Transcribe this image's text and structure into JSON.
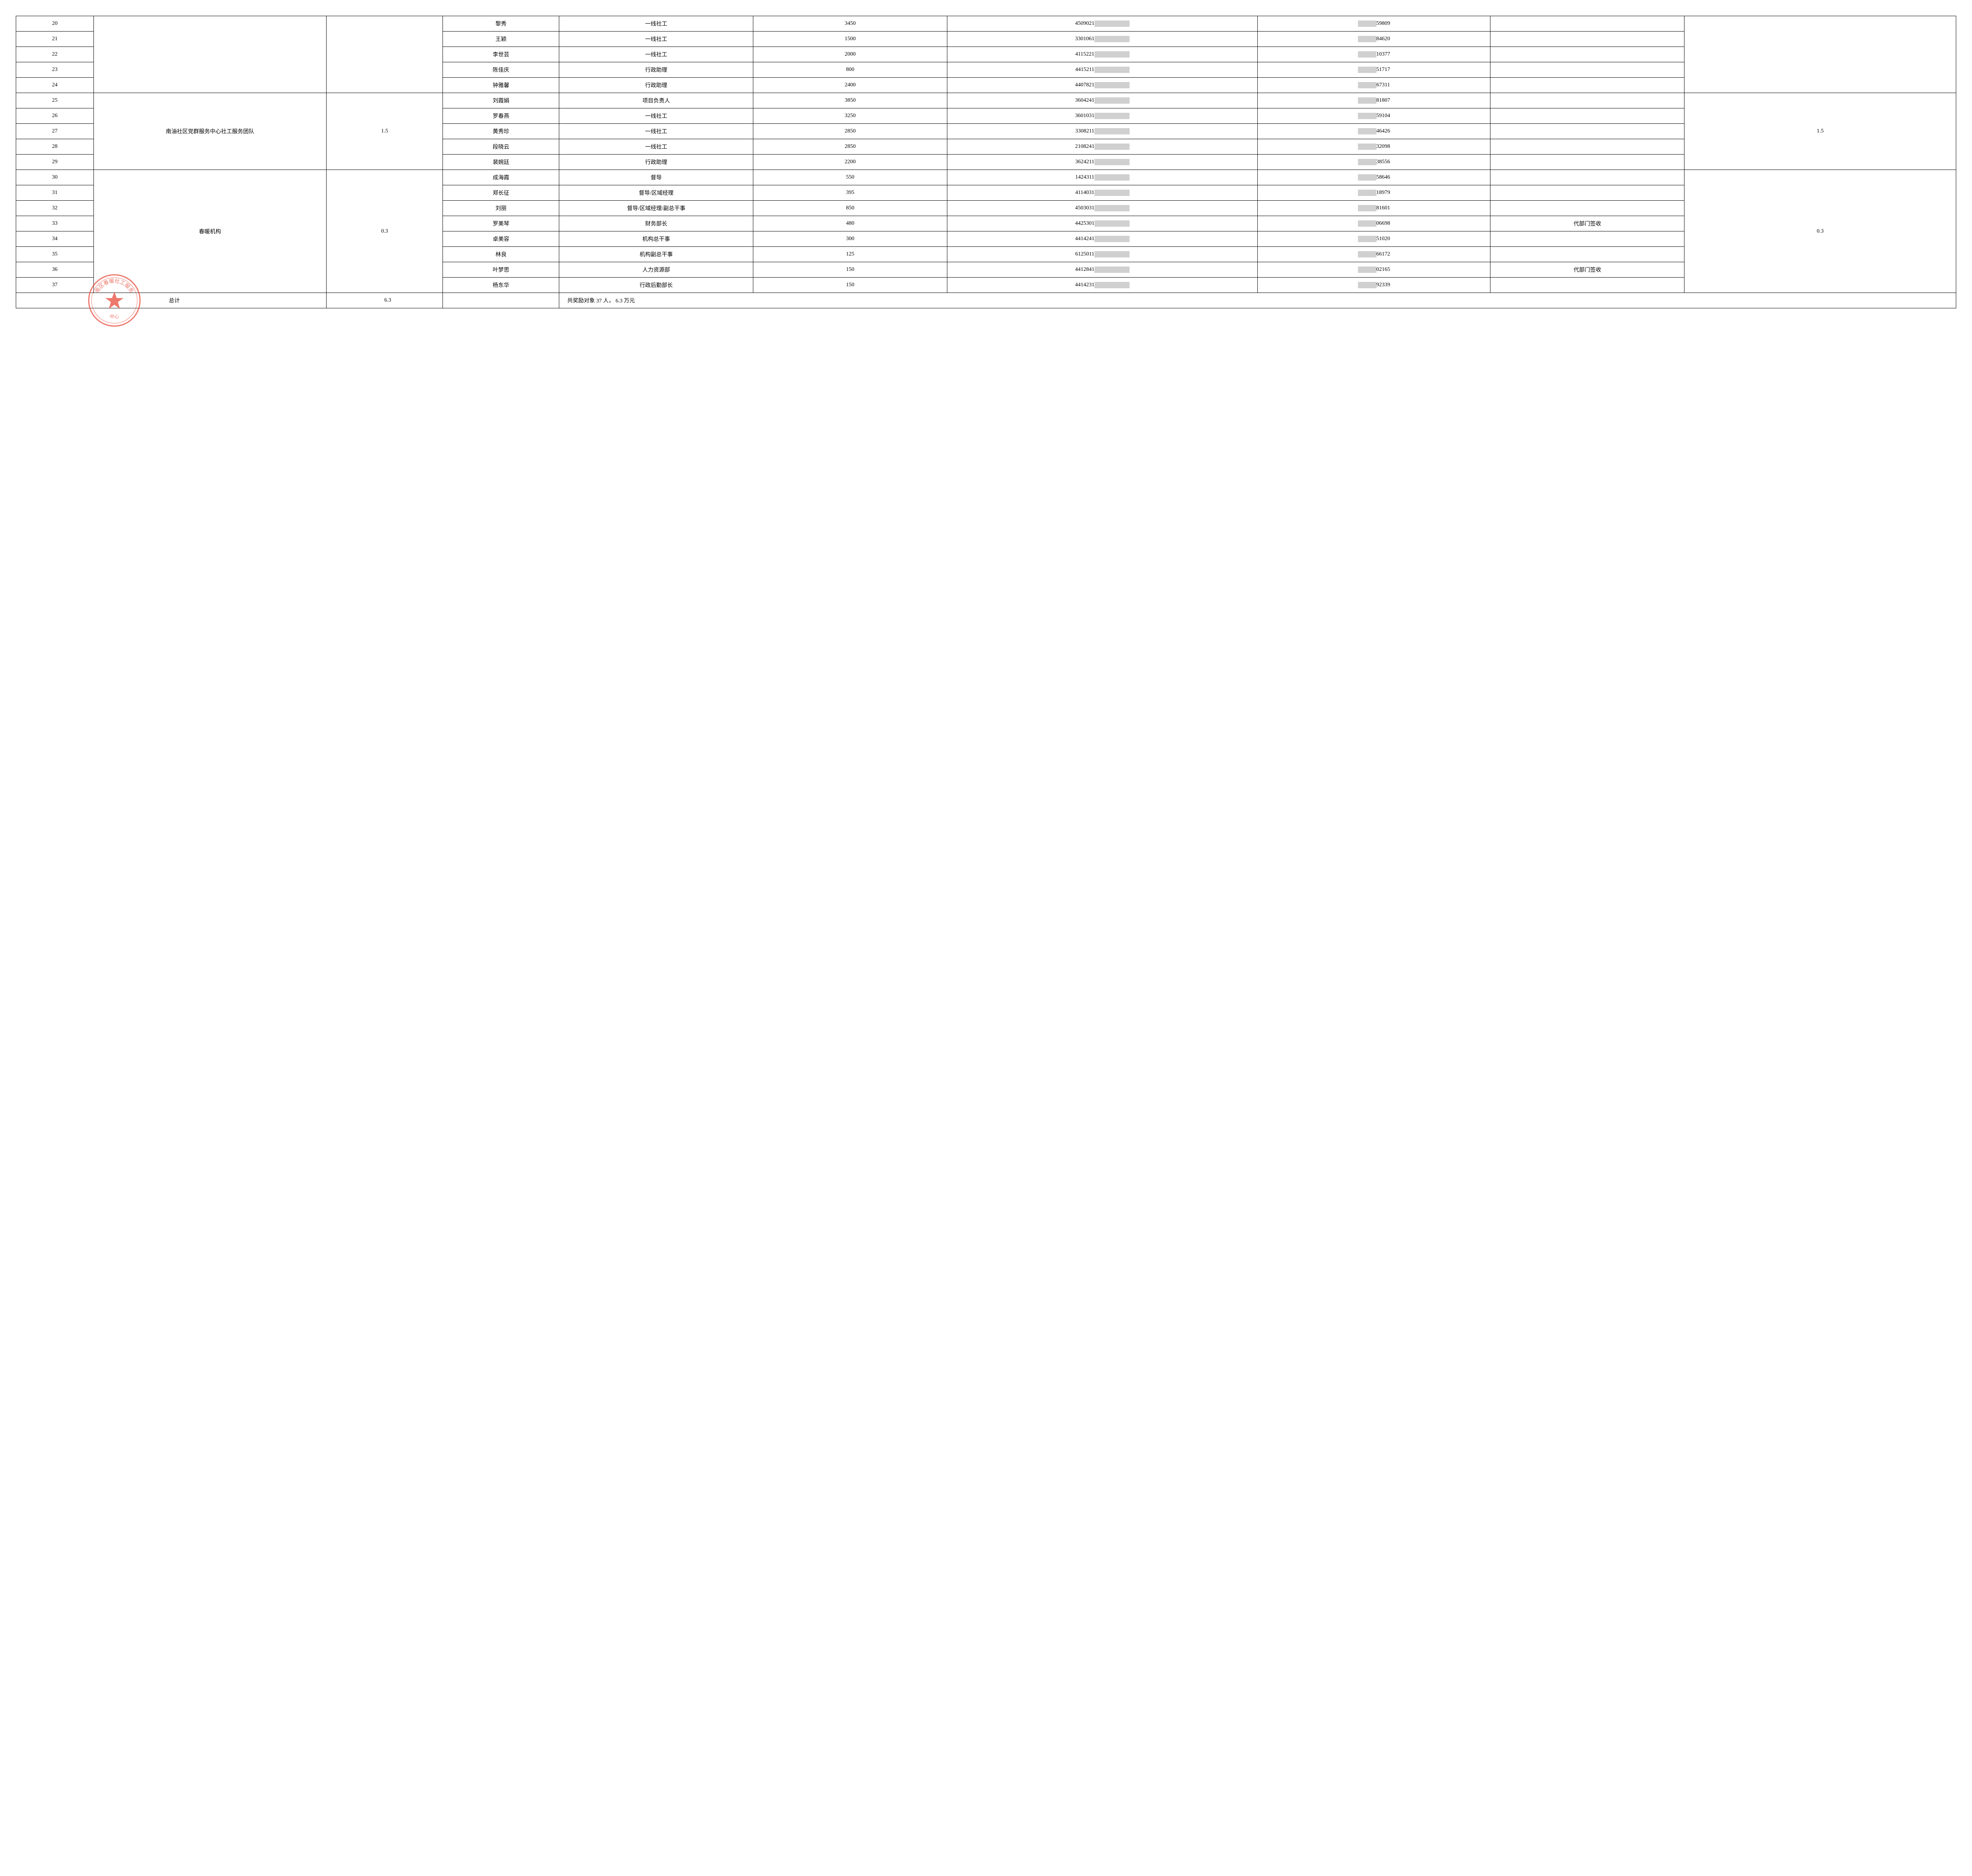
{
  "table": {
    "columns": {
      "seq_width": "4%",
      "team_width": "12%",
      "ratio_width": "6%",
      "name_width": "6%",
      "role_width": "10%",
      "amount_width": "10%",
      "id_width": "16%",
      "phone_width": "12%",
      "note_width": "10%",
      "ratio2_width": "14%"
    },
    "border_color": "#000000",
    "background_color": "#ffffff",
    "text_color": "#000000",
    "font_size": 14,
    "mask_color": "#d0d0d0"
  },
  "groups": [
    {
      "team": "",
      "ratio": "",
      "ratio2": "",
      "rows": [
        {
          "seq": "20",
          "name": "黎秀",
          "role": "一线社工",
          "amount": "3450",
          "id_prefix": "4509021",
          "id_mask": "█████████",
          "phone_prefix": "1████",
          "phone_suffix": "59809",
          "note": ""
        },
        {
          "seq": "21",
          "name": "王颖",
          "role": "一线社工",
          "amount": "1500",
          "id_prefix": "3301061",
          "id_mask": "█████████",
          "phone_prefix": "1████",
          "phone_suffix": "84620",
          "note": ""
        },
        {
          "seq": "22",
          "name": "李世芸",
          "role": "一线社工",
          "amount": "2000",
          "id_prefix": "4115221",
          "id_mask": "█████████",
          "phone_prefix": "1████",
          "phone_suffix": "10377",
          "note": ""
        },
        {
          "seq": "23",
          "name": "陈佳庆",
          "role": "行政助理",
          "amount": "800",
          "id_prefix": "4415211",
          "id_mask": "█████████",
          "phone_prefix": "1████",
          "phone_suffix": "51717",
          "note": ""
        },
        {
          "seq": "24",
          "name": "钟雅馨",
          "role": "行政助理",
          "amount": "2400",
          "id_prefix": "4407821",
          "id_mask": "█████████",
          "phone_prefix": "1████",
          "phone_suffix": "67311",
          "note": ""
        }
      ]
    },
    {
      "team": "南油社区党群服务中心社工服务团队",
      "ratio": "1.5",
      "ratio2": "1.5",
      "rows": [
        {
          "seq": "25",
          "name": "刘霞娟",
          "role": "项目负责人",
          "amount": "3850",
          "id_prefix": "3604241",
          "id_mask": "█████████",
          "phone_prefix": "1████",
          "phone_suffix": "81807",
          "note": ""
        },
        {
          "seq": "26",
          "name": "罗春燕",
          "role": "一线社工",
          "amount": "3250",
          "id_prefix": "3601031",
          "id_mask": "█████████",
          "phone_prefix": "1████",
          "phone_suffix": "59104",
          "note": ""
        },
        {
          "seq": "27",
          "name": "黄秀珍",
          "role": "一线社工",
          "amount": "2850",
          "id_prefix": "3308211",
          "id_mask": "█████████",
          "phone_prefix": "1████",
          "phone_suffix": "46426",
          "note": ""
        },
        {
          "seq": "28",
          "name": "段晓云",
          "role": "一线社工",
          "amount": "2850",
          "id_prefix": "2108241",
          "id_mask": "█████████",
          "phone_prefix": "1████",
          "phone_suffix": "32098",
          "note": ""
        },
        {
          "seq": "29",
          "name": "裴婉廷",
          "role": "行政助理",
          "amount": "2200",
          "id_prefix": "3624211",
          "id_mask": "█████████",
          "phone_prefix": "1████",
          "phone_suffix": "38556",
          "note": ""
        }
      ]
    },
    {
      "team": "春暖机构",
      "ratio": "0.3",
      "ratio2": "0.3",
      "rows": [
        {
          "seq": "30",
          "name": "成海霞",
          "role": "督导",
          "amount": "550",
          "id_prefix": "1424311",
          "id_mask": "█████████",
          "phone_prefix": "1████",
          "phone_suffix": "58646",
          "note": ""
        },
        {
          "seq": "31",
          "name": "郑长征",
          "role": "督导/区域经理",
          "amount": "395",
          "id_prefix": "4114031",
          "id_mask": "█████████",
          "phone_prefix": "1████",
          "phone_suffix": "18979",
          "note": ""
        },
        {
          "seq": "32",
          "name": "刘丽",
          "role": "督导/区域经理/副总干事",
          "amount": "850",
          "id_prefix": "4503031",
          "id_mask": "█████████",
          "phone_prefix": "1████",
          "phone_suffix": "81601",
          "note": ""
        },
        {
          "seq": "33",
          "name": "罗美琴",
          "role": "财务部长",
          "amount": "480",
          "id_prefix": "4425301",
          "id_mask": "█████████",
          "phone_prefix": "1████",
          "phone_suffix": "06698",
          "note": "代部门签收"
        },
        {
          "seq": "34",
          "name": "卓美容",
          "role": "机构总干事",
          "amount": "300",
          "id_prefix": "4414241",
          "id_mask": "█████████",
          "phone_prefix": "1████",
          "phone_suffix": "51020",
          "note": ""
        },
        {
          "seq": "35",
          "name": "林良",
          "role": "机构副总干事",
          "amount": "125",
          "id_prefix": "6125011",
          "id_mask": "█████████",
          "phone_prefix": "1████",
          "phone_suffix": "66172",
          "note": ""
        },
        {
          "seq": "36",
          "name": "叶梦思",
          "role": "人力资源部",
          "amount": "150",
          "id_prefix": "4412841",
          "id_mask": "█████████",
          "phone_prefix": "1████",
          "phone_suffix": "02165",
          "note": "代部门签收"
        },
        {
          "seq": "37",
          "name": "杨东华",
          "role": "行政后勤部长",
          "amount": "150",
          "id_prefix": "4414231",
          "id_mask": "█████████",
          "phone_prefix": "1████",
          "phone_suffix": "92339",
          "note": ""
        }
      ]
    }
  ],
  "summary": {
    "label": "总计",
    "ratio_total": "6.3",
    "text": "共奖励对象 37  人，    6.3 万元"
  },
  "stamp": {
    "color": "#e74c3c",
    "outer_text": "南区春暖社工服务",
    "inner_text": "中心"
  }
}
